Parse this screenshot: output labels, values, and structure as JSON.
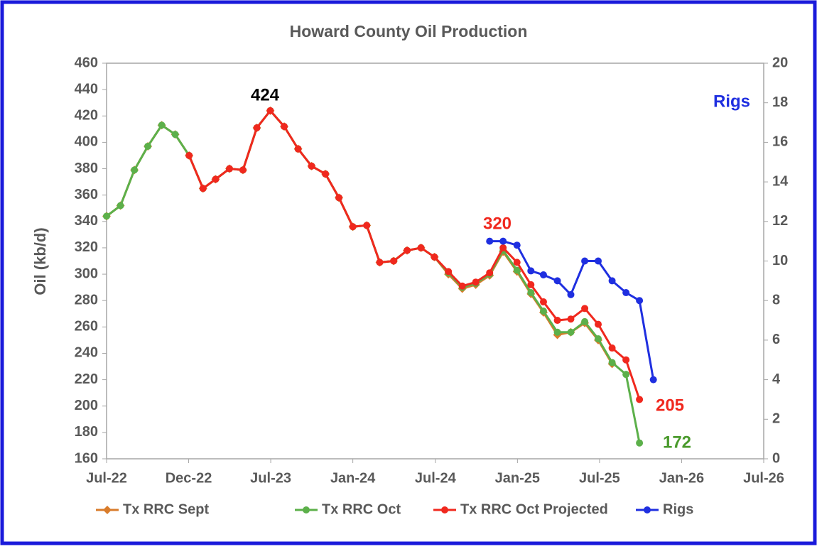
{
  "chart_data": {
    "type": "line",
    "title": "Howard County Oil Production",
    "y_label": "Oil (kb/d)",
    "x": [
      "2022-07",
      "2022-08",
      "2022-09",
      "2022-10",
      "2022-11",
      "2022-12",
      "2023-01",
      "2023-02",
      "2023-03",
      "2023-04",
      "2023-05",
      "2023-06",
      "2023-07",
      "2023-08",
      "2023-09",
      "2023-10",
      "2023-11",
      "2023-12",
      "2024-01",
      "2024-02",
      "2024-03",
      "2024-04",
      "2024-05",
      "2024-06",
      "2024-07",
      "2024-08",
      "2024-09",
      "2024-10",
      "2024-11",
      "2024-12",
      "2025-01",
      "2025-02",
      "2025-03",
      "2025-04",
      "2025-05",
      "2025-06",
      "2025-07",
      "2025-08",
      "2025-09",
      "2025-10",
      "2025-11"
    ],
    "series": [
      {
        "name": "Tx RRC Sept",
        "color": "#d97c2b",
        "marker": "diamond",
        "values": [
          344,
          352,
          379,
          397,
          413,
          406,
          390,
          365,
          372,
          380,
          379,
          411,
          424,
          412,
          395,
          382,
          376,
          358,
          336,
          337,
          309,
          310,
          318,
          320,
          313,
          300,
          289,
          292,
          299,
          317,
          302,
          285,
          271,
          254,
          256,
          263,
          250,
          232,
          null,
          null,
          null
        ]
      },
      {
        "name": "Tx RRC Oct",
        "color": "#5cb04a",
        "marker": "circle",
        "values": [
          344,
          352,
          379,
          397,
          413,
          406,
          390,
          365,
          372,
          380,
          379,
          411,
          424,
          412,
          395,
          382,
          376,
          358,
          336,
          337,
          309,
          310,
          318,
          320,
          313,
          301,
          290,
          293,
          300,
          318,
          303,
          286,
          272,
          256,
          256,
          264,
          251,
          233,
          224,
          172,
          null
        ]
      },
      {
        "name": "Tx RRC Oct Projected",
        "color": "#f0281e",
        "marker": "circle",
        "values": [
          null,
          null,
          null,
          null,
          null,
          null,
          390,
          365,
          372,
          380,
          379,
          411,
          424,
          412,
          395,
          382,
          376,
          358,
          336,
          337,
          309,
          310,
          318,
          320,
          313,
          302,
          291,
          294,
          301,
          320,
          309,
          292,
          279,
          265,
          266,
          274,
          262,
          244,
          235,
          205,
          null
        ]
      },
      {
        "name": "Rigs",
        "color": "#1f2fe0",
        "marker": "circle",
        "axis": "y2",
        "values": [
          null,
          null,
          null,
          null,
          null,
          null,
          null,
          null,
          null,
          null,
          null,
          null,
          null,
          null,
          null,
          null,
          null,
          null,
          null,
          null,
          null,
          null,
          null,
          null,
          null,
          null,
          null,
          null,
          11,
          11,
          10.8,
          9.5,
          9.3,
          9,
          8.3,
          10,
          10,
          9,
          8.4,
          8,
          4
        ]
      }
    ],
    "xlim": [
      "2022-07-01",
      "2026-07-05"
    ],
    "xticks": [
      {
        "value": "2022-07-01",
        "label": "Jul-22"
      },
      {
        "value": "2022-12-31",
        "label": "Dec-22"
      },
      {
        "value": "2023-07-02",
        "label": "Jul-23"
      },
      {
        "value": "2024-01-01",
        "label": "Jan-24"
      },
      {
        "value": "2024-07-03",
        "label": "Jul-24"
      },
      {
        "value": "2025-01-02",
        "label": "Jan-25"
      },
      {
        "value": "2025-07-04",
        "label": "Jul-25"
      },
      {
        "value": "2026-01-03",
        "label": "Jan-26"
      },
      {
        "value": "2026-07-05",
        "label": "Jul-26"
      }
    ],
    "ylim": [
      160,
      460
    ],
    "yticks": [
      160,
      180,
      200,
      220,
      240,
      260,
      280,
      300,
      320,
      340,
      360,
      380,
      400,
      420,
      440,
      460
    ],
    "y2lim": [
      0,
      20
    ],
    "y2ticks": [
      0,
      2,
      4,
      6,
      8,
      10,
      12,
      14,
      16,
      18,
      20
    ],
    "annotations": [
      {
        "text": "424",
        "color": "#000000"
      },
      {
        "text": "320",
        "color": "#f0281e"
      },
      {
        "text": "205",
        "color": "#f0281e"
      },
      {
        "text": "172",
        "color": "#4a9a2c"
      },
      {
        "text": "Rigs",
        "color": "#1f2fe0"
      }
    ],
    "legend": "bottom"
  }
}
